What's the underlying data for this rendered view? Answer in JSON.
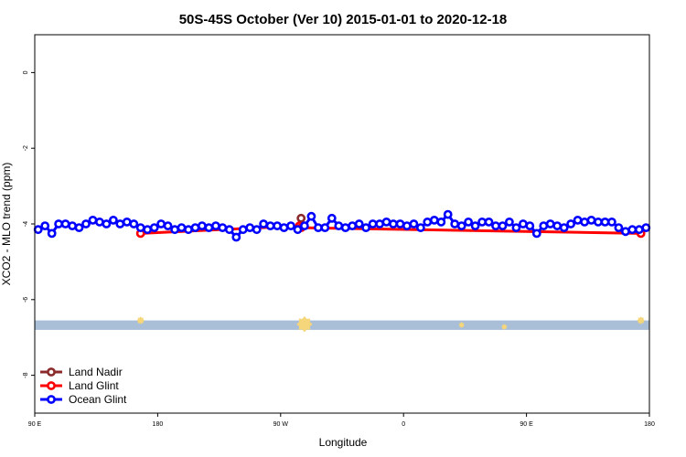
{
  "chart_data": {
    "type": "line",
    "title": "50S-45S October (Ver 10)   2015-01-01 to 2020-12-18",
    "xlabel": "Longitude",
    "ylabel": "XCO2 - MLO trend (ppm)",
    "xlim": [
      90,
      450
    ],
    "ylim": [
      -9,
      1
    ],
    "x_ticks": [
      {
        "value": 90,
        "label": "90 E"
      },
      {
        "value": 162,
        "label": "180"
      },
      {
        "value": 234,
        "label": "90 W"
      },
      {
        "value": 306,
        "label": "0"
      },
      {
        "value": 378,
        "label": "90 E"
      },
      {
        "value": 450,
        "label": "180"
      }
    ],
    "y_ticks": [
      {
        "value": 0,
        "label": "0"
      },
      {
        "value": -2,
        "label": "-2"
      },
      {
        "value": -4,
        "label": "-4"
      },
      {
        "value": -6,
        "label": "-6"
      },
      {
        "value": -8,
        "label": "-8"
      }
    ],
    "grid": false,
    "legend_position": "bottom-left",
    "series": [
      {
        "name": "Land Nadir",
        "color": "#8b2a2a",
        "x": [
          246
        ],
        "y": [
          -3.85
        ]
      },
      {
        "name": "Land Glint",
        "color": "#ff0000",
        "x": [
          152,
          245,
          246,
          445
        ],
        "y": [
          -4.25,
          -4.05,
          -4.1,
          -4.25
        ]
      },
      {
        "name": "Ocean Glint",
        "color": "#0000ff",
        "x": [
          92,
          96,
          100,
          104,
          108,
          112,
          116,
          120,
          124,
          128,
          132,
          136,
          140,
          144,
          148,
          152,
          156,
          160,
          164,
          168,
          172,
          176,
          180,
          184,
          188,
          192,
          196,
          200,
          204,
          208,
          212,
          216,
          220,
          224,
          228,
          232,
          236,
          240,
          244,
          248,
          252,
          256,
          260,
          264,
          268,
          272,
          276,
          280,
          284,
          288,
          292,
          296,
          300,
          304,
          308,
          312,
          316,
          320,
          324,
          328,
          332,
          336,
          340,
          344,
          348,
          352,
          356,
          360,
          364,
          368,
          372,
          376,
          380,
          384,
          388,
          392,
          396,
          400,
          404,
          408,
          412,
          416,
          420,
          424,
          428,
          432,
          436,
          440,
          444,
          448
        ],
        "y": [
          -4.15,
          -4.05,
          -4.25,
          -4.0,
          -4.0,
          -4.05,
          -4.1,
          -4.0,
          -3.9,
          -3.95,
          -4.0,
          -3.9,
          -4.0,
          -3.95,
          -4.0,
          -4.1,
          -4.15,
          -4.1,
          -4.0,
          -4.05,
          -4.15,
          -4.1,
          -4.15,
          -4.1,
          -4.05,
          -4.1,
          -4.05,
          -4.1,
          -4.15,
          -4.35,
          -4.15,
          -4.1,
          -4.15,
          -4.0,
          -4.05,
          -4.05,
          -4.1,
          -4.05,
          -4.15,
          -4.05,
          -3.8,
          -4.1,
          -4.1,
          -3.85,
          -4.05,
          -4.1,
          -4.05,
          -4.0,
          -4.1,
          -4.0,
          -4.0,
          -3.95,
          -4.0,
          -4.0,
          -4.05,
          -4.0,
          -4.1,
          -3.95,
          -3.9,
          -3.95,
          -3.75,
          -4.0,
          -4.05,
          -3.95,
          -4.05,
          -3.95,
          -3.95,
          -4.05,
          -4.05,
          -3.95,
          -4.1,
          -4.0,
          -4.05,
          -4.25,
          -4.05,
          -4.0,
          -4.05,
          -4.1,
          -4.0,
          -3.9,
          -3.95,
          -3.9,
          -3.95,
          -3.95,
          -3.95,
          -4.1,
          -4.2,
          -4.15,
          -4.15,
          -4.1
        ]
      }
    ],
    "band": {
      "y_from": -6.55,
      "y_to": -6.8,
      "color": "#a9bfd8",
      "marker_color": "#f5d67a",
      "markers": [
        {
          "x": 152,
          "y": -6.55,
          "size": 1
        },
        {
          "x": 248,
          "y": -6.65,
          "size": 3
        },
        {
          "x": 340,
          "y": -6.67,
          "size": 0.5
        },
        {
          "x": 365,
          "y": -6.72,
          "size": 0.5
        },
        {
          "x": 445,
          "y": -6.55,
          "size": 1
        }
      ]
    }
  }
}
